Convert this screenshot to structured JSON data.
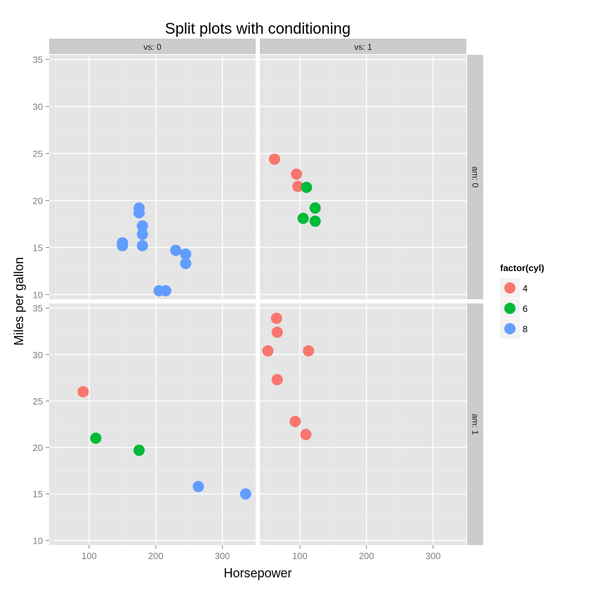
{
  "chart_data": {
    "type": "scatter",
    "title": "Split plots with conditioning",
    "xlabel": "Horsepower",
    "ylabel": "Miles per gallon",
    "xlim": [
      40,
      350
    ],
    "ylim": [
      9.5,
      35.5
    ],
    "x_ticks": [
      100,
      200,
      300
    ],
    "y_ticks": [
      10,
      15,
      20,
      25,
      30,
      35
    ],
    "grid": true,
    "legend": {
      "title": "factor(cyl)",
      "placement": "right"
    },
    "series": [
      {
        "name": "4",
        "color": "#F8766D"
      },
      {
        "name": "6",
        "color": "#00BA38"
      },
      {
        "name": "8",
        "color": "#619CFF"
      }
    ],
    "columns": [
      {
        "label": "vs: 0"
      },
      {
        "label": "vs: 1"
      }
    ],
    "rows": [
      {
        "label": "am: 0"
      },
      {
        "label": "am: 1"
      }
    ],
    "panels": [
      {
        "row": 0,
        "col": 0,
        "points": [
          {
            "x": 175,
            "y": 18.7,
            "cyl": "8"
          },
          {
            "x": 175,
            "y": 19.2,
            "cyl": "8"
          },
          {
            "x": 180,
            "y": 17.3,
            "cyl": "8"
          },
          {
            "x": 180,
            "y": 16.4,
            "cyl": "8"
          },
          {
            "x": 180,
            "y": 15.2,
            "cyl": "8"
          },
          {
            "x": 150,
            "y": 15.5,
            "cyl": "8"
          },
          {
            "x": 150,
            "y": 15.2,
            "cyl": "8"
          },
          {
            "x": 230,
            "y": 14.7,
            "cyl": "8"
          },
          {
            "x": 245,
            "y": 14.3,
            "cyl": "8"
          },
          {
            "x": 245,
            "y": 13.3,
            "cyl": "8"
          },
          {
            "x": 205,
            "y": 10.4,
            "cyl": "8"
          },
          {
            "x": 215,
            "y": 10.4,
            "cyl": "8"
          }
        ]
      },
      {
        "row": 0,
        "col": 1,
        "points": [
          {
            "x": 62,
            "y": 24.4,
            "cyl": "4"
          },
          {
            "x": 95,
            "y": 22.8,
            "cyl": "4"
          },
          {
            "x": 97,
            "y": 21.5,
            "cyl": "4"
          },
          {
            "x": 110,
            "y": 21.4,
            "cyl": "6"
          },
          {
            "x": 105,
            "y": 18.1,
            "cyl": "6"
          },
          {
            "x": 123,
            "y": 19.2,
            "cyl": "6"
          },
          {
            "x": 123,
            "y": 17.8,
            "cyl": "6"
          }
        ]
      },
      {
        "row": 1,
        "col": 0,
        "points": [
          {
            "x": 91,
            "y": 26.0,
            "cyl": "4"
          },
          {
            "x": 110,
            "y": 21.0,
            "cyl": "6"
          },
          {
            "x": 175,
            "y": 19.7,
            "cyl": "6"
          },
          {
            "x": 264,
            "y": 15.8,
            "cyl": "8"
          },
          {
            "x": 335,
            "y": 15.0,
            "cyl": "8"
          }
        ]
      },
      {
        "row": 1,
        "col": 1,
        "points": [
          {
            "x": 66,
            "y": 32.4,
            "cyl": "4"
          },
          {
            "x": 65,
            "y": 33.9,
            "cyl": "4"
          },
          {
            "x": 52,
            "y": 30.4,
            "cyl": "4"
          },
          {
            "x": 113,
            "y": 30.4,
            "cyl": "4"
          },
          {
            "x": 66,
            "y": 27.3,
            "cyl": "4"
          },
          {
            "x": 93,
            "y": 22.8,
            "cyl": "4"
          },
          {
            "x": 109,
            "y": 21.4,
            "cyl": "4"
          }
        ]
      }
    ]
  }
}
